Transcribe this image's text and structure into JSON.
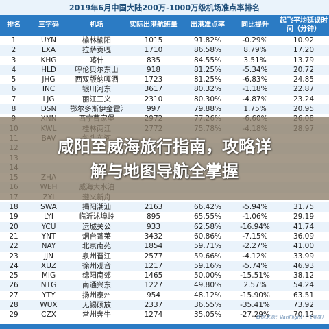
{
  "title": "2019年6月中国大陆200万-1000万级机场准点率排名",
  "headers": [
    "排名",
    "三字码",
    "机场",
    "实际出港航班量",
    "出港准点率",
    "同比提升",
    "起飞平均延误时间（分钟）"
  ],
  "rows": [
    [
      "1",
      "UYN",
      "榆林榆阳",
      "1015",
      "91.82%",
      "-0.29%",
      "10.92"
    ],
    [
      "2",
      "LXA",
      "拉萨贡嘎",
      "1710",
      "86.58%",
      "8.79%",
      "17.20"
    ],
    [
      "3",
      "KHG",
      "喀什",
      "835",
      "84.55%",
      "3.51%",
      "13.79"
    ],
    [
      "4",
      "HLD",
      "呼伦贝尔东山",
      "918",
      "81.25%",
      "-5.34%",
      "20.72"
    ],
    [
      "5",
      "JHG",
      "西双版纳嘎洒",
      "1723",
      "81.25%",
      "-6.83%",
      "24.85"
    ],
    [
      "6",
      "INC",
      "银川河东",
      "3617",
      "80.32%",
      "-1.18%",
      "22.87"
    ],
    [
      "7",
      "LJG",
      "丽江三义",
      "2310",
      "80.30%",
      "-4.87%",
      "23.24"
    ],
    [
      "8",
      "DSN",
      "鄂尔多斯伊金霍洛",
      "997",
      "79.88%",
      "1.75%",
      "20.95"
    ],
    [
      "9",
      "XNN",
      "西宁曹家堡",
      "2972",
      "77.26%",
      "-6.60%",
      "26.08"
    ],
    [
      "10",
      "KWL",
      "桂林两江",
      "2772",
      "75.78%",
      "-4.18%",
      "28.97"
    ],
    [
      "11",
      "BAV",
      "包头东河",
      "",
      "",
      "",
      ""
    ],
    [
      "12",
      "",
      "",
      "",
      "",
      "",
      ""
    ],
    [
      "13",
      "",
      "",
      "",
      "",
      "",
      ""
    ],
    [
      "14",
      "",
      "",
      "",
      "",
      "",
      ""
    ],
    [
      "15",
      "ZHA",
      "",
      "",
      "",
      "",
      ""
    ],
    [
      "16",
      "WEH",
      "威海大水泊",
      "",
      "",
      "",
      ""
    ],
    [
      "17",
      "ZYI",
      "遵义新舟",
      "",
      "",
      "",
      ""
    ],
    [
      "18",
      "SWA",
      "揭阳潮汕",
      "2163",
      "66.42%",
      "-5.94%",
      "31.75"
    ],
    [
      "19",
      "LYI",
      "临沂沭埠岭",
      "895",
      "65.55%",
      "-1.06%",
      "29.19"
    ],
    [
      "20",
      "YCU",
      "运城关公",
      "933",
      "62.58%",
      "-16.94%",
      "41.74"
    ],
    [
      "21",
      "YNT",
      "烟台蓬莱",
      "3432",
      "60.86%",
      "-7.15%",
      "36.09"
    ],
    [
      "22",
      "NAY",
      "北京南苑",
      "1854",
      "59.71%",
      "-2.27%",
      "41.00"
    ],
    [
      "23",
      "JJN",
      "泉州晋江",
      "2577",
      "59.66%",
      "-4.12%",
      "33.99"
    ],
    [
      "24",
      "XUZ",
      "徐州观音",
      "1217",
      "59.16%",
      "-5.74%",
      "46.93"
    ],
    [
      "25",
      "MIG",
      "绵阳南郊",
      "1465",
      "50.00%",
      "-15.51%",
      "38.12"
    ],
    [
      "26",
      "NTG",
      "南通兴东",
      "1227",
      "49.80%",
      "2.57%",
      "54.24"
    ],
    [
      "27",
      "YTY",
      "扬州泰州",
      "954",
      "48.12%",
      "-15.90%",
      "63.51"
    ],
    [
      "28",
      "WUX",
      "无锡硕放",
      "2337",
      "36.55%",
      "-35.41%",
      "73.92"
    ],
    [
      "29",
      "CZX",
      "常州奔牛",
      "1274",
      "35.05%",
      "-27.29%",
      "70.12"
    ]
  ],
  "headline_line1": "咸阳至威海旅行指南，攻略详",
  "headline_line2": "解与地图导航全掌握",
  "credit": "数据来源：VariFlight（飞常准）",
  "colors": {
    "header_bg": "#2b7bc4",
    "alt_row": "#eaf3fb",
    "overlay": "#8c7d69"
  }
}
